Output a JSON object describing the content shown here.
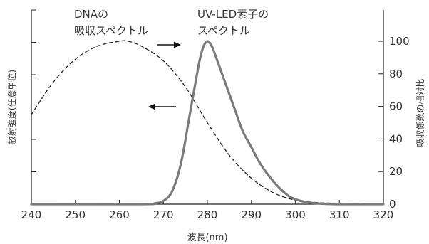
{
  "chart_data": {
    "type": "line",
    "xlabel": "波長(nm)",
    "ylabel_left": "放射強度(任意単位)",
    "ylabel_right": "吸収係数の相対比",
    "xlim": [
      240,
      320
    ],
    "x_ticks": [
      240,
      250,
      260,
      270,
      280,
      290,
      300,
      310,
      320
    ],
    "ylim": [
      0,
      110
    ],
    "y_right_ticks": [
      0,
      20,
      40,
      60,
      80,
      100
    ],
    "left_axis_tick_count": 6,
    "series": [
      {
        "name": "DNAの吸収スペクトル",
        "style": "dashed",
        "color": "#222222",
        "axis": "right",
        "x": [
          240,
          245,
          250,
          255,
          260,
          262,
          265,
          270,
          275,
          280,
          285,
          290,
          295,
          300,
          305,
          310,
          320
        ],
        "y": [
          55,
          75,
          89,
          97,
          100,
          100,
          97,
          88,
          72,
          50,
          30,
          16,
          7,
          2.5,
          1,
          0.5,
          0.2
        ]
      },
      {
        "name": "UV-LED素子のスペクトル",
        "style": "solid",
        "color": "#7a7a7a",
        "axis": "left",
        "x": [
          240,
          265,
          268,
          270,
          272,
          274,
          276,
          278,
          279,
          280,
          281,
          282,
          284,
          286,
          288,
          290,
          292,
          295,
          298,
          300,
          303,
          306,
          310,
          320
        ],
        "y": [
          0,
          0,
          0.5,
          2,
          8,
          25,
          55,
          85,
          96,
          100,
          97,
          90,
          75,
          60,
          45,
          35,
          25,
          14,
          6,
          3,
          1,
          0.3,
          0,
          0
        ]
      }
    ],
    "annotations": [
      {
        "text_lines": [
          "DNAの",
          "吸収スペクトル"
        ],
        "arrow": "left",
        "points_to": "right axis"
      },
      {
        "text_lines": [
          "UV-LED素子の",
          "スペクトル"
        ],
        "arrow": "right",
        "points_to": "left axis"
      }
    ]
  }
}
